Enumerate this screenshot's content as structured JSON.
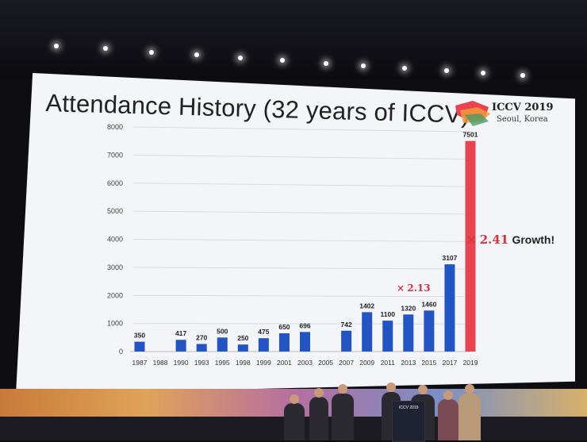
{
  "slide": {
    "title": "Attendance History (32 years of ICCV)",
    "logo_text": "ICCV 2019",
    "logo_subtext": "Seoul, Korea"
  },
  "chart_data": {
    "type": "bar",
    "categories": [
      "1987",
      "1988",
      "1990",
      "1993",
      "1995",
      "1998",
      "1999",
      "2001",
      "2003",
      "2005",
      "2007",
      "2009",
      "2011",
      "2013",
      "2015",
      "2017",
      "2019"
    ],
    "values": [
      350,
      null,
      417,
      270,
      500,
      250,
      475,
      650,
      696,
      null,
      742,
      1402,
      1100,
      1320,
      1460,
      3107,
      7501
    ],
    "data_labels": [
      "350",
      "",
      "417",
      "270",
      "500",
      "250",
      "475",
      "650",
      "696",
      "",
      "742",
      "1402",
      "1100",
      "1320",
      "1460",
      "3107",
      "7501"
    ],
    "ylim": [
      0,
      8000
    ],
    "yticks": [
      0,
      1000,
      2000,
      3000,
      4000,
      5000,
      6000,
      7000,
      8000
    ],
    "grid": true,
    "colors": {
      "bar": "#2354c4",
      "highlight": "#e8434f"
    },
    "highlight_category": "2019",
    "annotations": [
      {
        "x_symbol": "×",
        "factor": "2.13",
        "text": ""
      },
      {
        "x_symbol": "×",
        "factor": "2.41",
        "text": "Growth!"
      }
    ]
  },
  "podium": {
    "label": "ICCV 2019"
  }
}
